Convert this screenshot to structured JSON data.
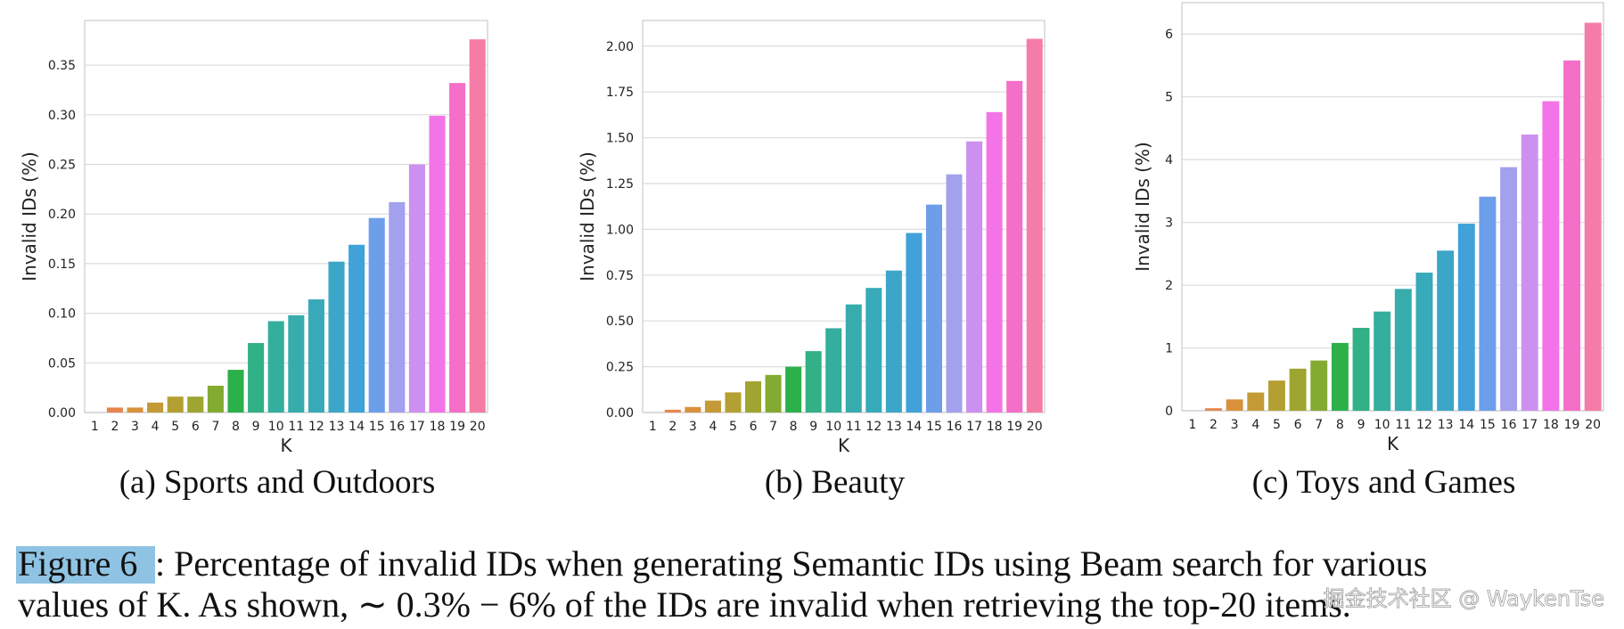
{
  "chart_data": [
    {
      "type": "bar",
      "title": "(a) Sports and Outdoors",
      "xlabel": "K",
      "ylabel": "Invalid IDs (%)",
      "categories": [
        "1",
        "2",
        "3",
        "4",
        "5",
        "6",
        "7",
        "8",
        "9",
        "10",
        "11",
        "12",
        "13",
        "14",
        "15",
        "16",
        "17",
        "18",
        "19",
        "20"
      ],
      "values": [
        0,
        0.005,
        0.005,
        0.01,
        0.016,
        0.016,
        0.027,
        0.043,
        0.07,
        0.092,
        0.098,
        0.114,
        0.152,
        0.169,
        0.196,
        0.212,
        0.25,
        0.299,
        0.332,
        0.376
      ],
      "colors": [
        "#f77189",
        "#e8854e",
        "#d9913b",
        "#c49a36",
        "#b4a032",
        "#9ea531",
        "#83ab31",
        "#2bb04a",
        "#32b086",
        "#34ae9d",
        "#36acad",
        "#38aab9",
        "#3ba6c8",
        "#40a2d9",
        "#6d9eea",
        "#a3a0ee",
        "#cc91f0",
        "#f274e6",
        "#f56ec8",
        "#f57ca6"
      ],
      "ylim": [
        0,
        0.395
      ],
      "yticks": [
        {
          "value": 0,
          "label": "0.00"
        },
        {
          "value": 0.05,
          "label": "0.05"
        },
        {
          "value": 0.1,
          "label": "0.10"
        },
        {
          "value": 0.15,
          "label": "0.15"
        },
        {
          "value": 0.2,
          "label": "0.20"
        },
        {
          "value": 0.25,
          "label": "0.25"
        },
        {
          "value": 0.3,
          "label": "0.30"
        },
        {
          "value": 0.35,
          "label": "0.35"
        }
      ],
      "grid": true
    },
    {
      "type": "bar",
      "title": "(b) Beauty",
      "xlabel": "K",
      "ylabel": "Invalid IDs (%)",
      "categories": [
        "1",
        "2",
        "3",
        "4",
        "5",
        "6",
        "7",
        "8",
        "9",
        "10",
        "11",
        "12",
        "13",
        "14",
        "15",
        "16",
        "17",
        "18",
        "19",
        "20"
      ],
      "values": [
        0,
        0.015,
        0.03,
        0.065,
        0.11,
        0.17,
        0.205,
        0.25,
        0.335,
        0.46,
        0.59,
        0.68,
        0.775,
        0.98,
        1.135,
        1.3,
        1.48,
        1.64,
        1.81,
        2.04
      ],
      "colors": [
        "#f77189",
        "#e8854e",
        "#d9913b",
        "#c49a36",
        "#b4a032",
        "#9ea531",
        "#83ab31",
        "#2bb04a",
        "#32b086",
        "#34ae9d",
        "#36acad",
        "#38aab9",
        "#3ba6c8",
        "#40a2d9",
        "#6d9eea",
        "#a3a0ee",
        "#cc91f0",
        "#f274e6",
        "#f56ec8",
        "#f57ca6"
      ],
      "ylim": [
        0,
        2.14
      ],
      "yticks": [
        {
          "value": 0,
          "label": "0.00"
        },
        {
          "value": 0.25,
          "label": "0.25"
        },
        {
          "value": 0.5,
          "label": "0.50"
        },
        {
          "value": 0.75,
          "label": "0.75"
        },
        {
          "value": 1,
          "label": "1.00"
        },
        {
          "value": 1.25,
          "label": "1.25"
        },
        {
          "value": 1.5,
          "label": "1.50"
        },
        {
          "value": 1.75,
          "label": "1.75"
        },
        {
          "value": 2,
          "label": "2.00"
        }
      ],
      "grid": true
    },
    {
      "type": "bar",
      "title": "(c) Toys and Games",
      "xlabel": "K",
      "ylabel": "Invalid IDs (%)",
      "categories": [
        "1",
        "2",
        "3",
        "4",
        "5",
        "6",
        "7",
        "8",
        "9",
        "10",
        "11",
        "12",
        "13",
        "14",
        "15",
        "16",
        "17",
        "18",
        "19",
        "20"
      ],
      "values": [
        0,
        0.04,
        0.18,
        0.29,
        0.48,
        0.67,
        0.8,
        1.08,
        1.32,
        1.58,
        1.94,
        2.2,
        2.55,
        2.98,
        3.41,
        3.88,
        4.4,
        4.93,
        5.58,
        6.18
      ],
      "colors": [
        "#f77189",
        "#e8854e",
        "#d9913b",
        "#c49a36",
        "#b4a032",
        "#9ea531",
        "#83ab31",
        "#2bb04a",
        "#32b086",
        "#34ae9d",
        "#36acad",
        "#38aab9",
        "#3ba6c8",
        "#40a2d9",
        "#6d9eea",
        "#a3a0ee",
        "#cc91f0",
        "#f274e6",
        "#f56ec8",
        "#f57ca6"
      ],
      "ylim": [
        0,
        6.5
      ],
      "yticks": [
        0,
        1,
        2,
        3,
        4,
        5,
        6
      ],
      "grid": true
    }
  ],
  "caption": {
    "label": "Figure 6",
    "lines": [
      ": Percentage of invalid IDs when generating Semantic IDs using Beam search for various",
      "values of K. As shown, ∼ 0.3% − 6% of the IDs are invalid when retrieving the top-20 items."
    ]
  },
  "watermark": "掘金技术社区 @ WaykenTse"
}
